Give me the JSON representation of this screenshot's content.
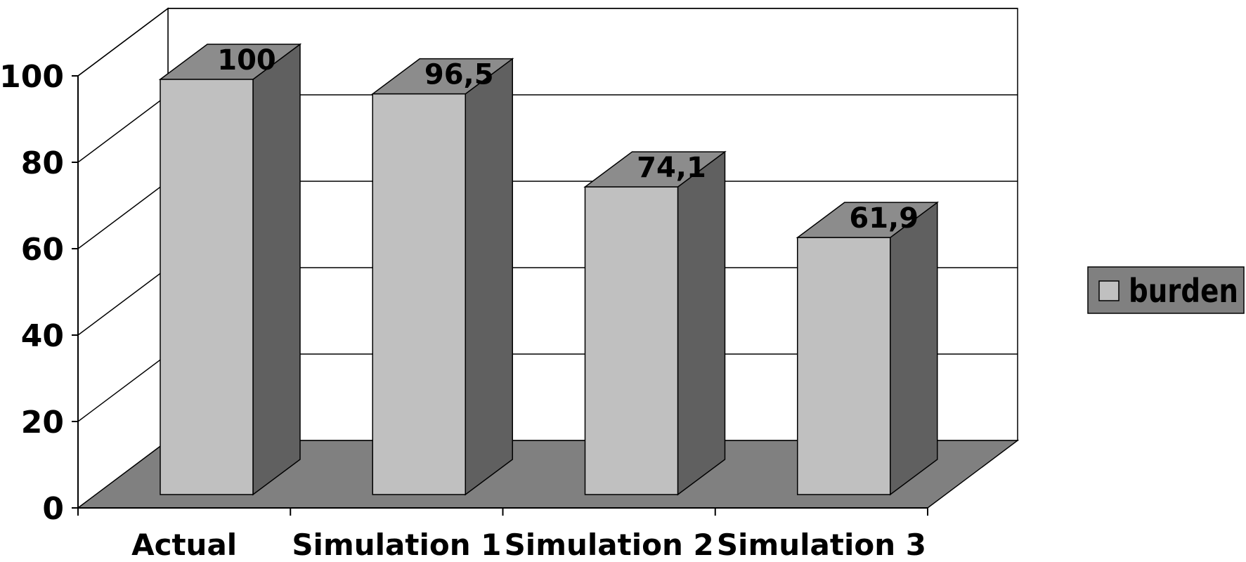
{
  "chart_data": {
    "type": "bar",
    "title": "",
    "xlabel": "",
    "ylabel": "",
    "categories": [
      "Actual",
      "Simulation 1",
      "Simulation 2",
      "Simulation 3"
    ],
    "series": [
      {
        "name": "burden",
        "values": [
          100,
          96.5,
          74.1,
          61.9
        ],
        "labels": [
          "100",
          "96,5",
          "74,1",
          "61,9"
        ]
      }
    ],
    "ylim": [
      0,
      100
    ],
    "yticks": [
      0,
      20,
      40,
      60,
      80,
      100
    ],
    "grid": true,
    "three_d": true,
    "legend_position": "right",
    "colors": {
      "bar_front": "#c0c0c0",
      "bar_top": "#8c8c8c",
      "bar_side": "#606060",
      "floor": "#808080",
      "legend_bg": "#808080",
      "legend_swatch": "#c0c0c0"
    }
  }
}
